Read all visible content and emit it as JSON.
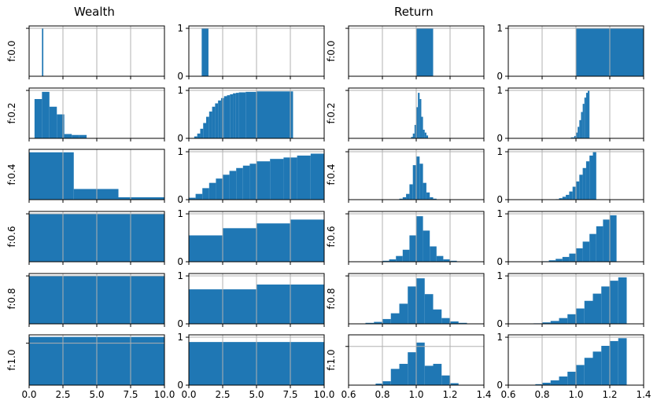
{
  "titles": {
    "wealth": "Wealth",
    "return": "Return"
  },
  "colors": {
    "bar": "#1f77b4",
    "grid": "#b0b0b0",
    "frame": "#000000"
  },
  "chart_data": {
    "type": "bar",
    "layout_note": "6x4 grid of histograms; rows indexed by f; columns: wealth density, wealth cumulative, return density, return cumulative",
    "row_labels": [
      "f:0.0",
      "f:0.2",
      "f:0.4",
      "f:0.6",
      "f:0.8",
      "f:1.0"
    ],
    "wealth_xlim": [
      0,
      10
    ],
    "wealth_xticks": [
      "0.0",
      "2.5",
      "5.0",
      "7.5",
      "10.0"
    ],
    "return_xlim": [
      0.6,
      1.4
    ],
    "return_xticks": [
      "0.6",
      "0.8",
      "1.0",
      "1.2",
      "1.4"
    ],
    "cdf_ylim": [
      0,
      1.05
    ],
    "cdf_yticks": [
      "0",
      "1"
    ],
    "grid": true,
    "rows": [
      {
        "wealth_hist": {
          "ylim": [
            0,
            1.05
          ],
          "bins": [
            [
              0.95,
              1.05,
              1.0
            ]
          ]
        },
        "wealth_cdf": [
          [
            0.95,
            1.45,
            1.0
          ]
        ],
        "return_hist": {
          "ylim": [
            0,
            1.05
          ],
          "bins": [
            [
              1.0,
              1.1,
              1.0
            ]
          ]
        },
        "return_cdf": [
          [
            1.0,
            1.4,
            1.0
          ]
        ]
      },
      {
        "wealth_hist": {
          "ylim": [
            0,
            1.05
          ],
          "bins": [
            [
              0.4,
              0.95,
              0.82
            ],
            [
              0.95,
              1.5,
              0.97
            ],
            [
              1.5,
              2.05,
              0.66
            ],
            [
              2.05,
              2.6,
              0.5
            ],
            [
              2.6,
              3.15,
              0.09
            ],
            [
              3.15,
              3.7,
              0.07
            ],
            [
              3.7,
              4.25,
              0.07
            ]
          ]
        },
        "wealth_cdf": [
          [
            0.4,
            0.62,
            0.04
          ],
          [
            0.62,
            0.84,
            0.1
          ],
          [
            0.84,
            1.06,
            0.2
          ],
          [
            1.06,
            1.28,
            0.32
          ],
          [
            1.28,
            1.5,
            0.45
          ],
          [
            1.5,
            1.72,
            0.56
          ],
          [
            1.72,
            1.94,
            0.66
          ],
          [
            1.94,
            2.16,
            0.73
          ],
          [
            2.16,
            2.38,
            0.79
          ],
          [
            2.38,
            2.6,
            0.84
          ],
          [
            2.6,
            2.82,
            0.88
          ],
          [
            2.82,
            3.04,
            0.9
          ],
          [
            3.04,
            3.26,
            0.92
          ],
          [
            3.26,
            3.48,
            0.94
          ],
          [
            3.48,
            3.7,
            0.95
          ],
          [
            3.7,
            4.2,
            0.96
          ],
          [
            4.2,
            5.0,
            0.97
          ],
          [
            5.0,
            7.7,
            0.98
          ]
        ],
        "return_hist": {
          "ylim": [
            0,
            1.05
          ],
          "bins": [
            [
              0.97,
              0.98,
              0.03
            ],
            [
              0.98,
              0.99,
              0.1
            ],
            [
              0.99,
              1.0,
              0.28
            ],
            [
              1.0,
              1.01,
              0.65
            ],
            [
              1.01,
              1.02,
              0.95
            ],
            [
              1.02,
              1.03,
              0.82
            ],
            [
              1.03,
              1.04,
              0.45
            ],
            [
              1.04,
              1.05,
              0.18
            ],
            [
              1.05,
              1.06,
              0.12
            ],
            [
              1.06,
              1.07,
              0.06
            ]
          ]
        },
        "return_cdf": [
          [
            0.97,
            0.99,
            0.02
          ],
          [
            0.99,
            1.0,
            0.05
          ],
          [
            1.0,
            1.01,
            0.12
          ],
          [
            1.01,
            1.02,
            0.24
          ],
          [
            1.02,
            1.03,
            0.38
          ],
          [
            1.03,
            1.04,
            0.55
          ],
          [
            1.04,
            1.05,
            0.72
          ],
          [
            1.05,
            1.06,
            0.85
          ],
          [
            1.06,
            1.07,
            0.95
          ],
          [
            1.07,
            1.08,
            0.99
          ]
        ]
      },
      {
        "wealth_hist": {
          "ylim": [
            0,
            0.85
          ],
          "bins": [
            [
              0.0,
              3.3,
              0.8
            ],
            [
              3.3,
              6.6,
              0.18
            ],
            [
              6.6,
              10.0,
              0.04
            ]
          ]
        },
        "wealth_cdf": [
          [
            0.0,
            0.5,
            0.04
          ],
          [
            0.5,
            1.0,
            0.12
          ],
          [
            1.0,
            1.5,
            0.24
          ],
          [
            1.5,
            2.0,
            0.35
          ],
          [
            2.0,
            2.5,
            0.44
          ],
          [
            2.5,
            3.0,
            0.52
          ],
          [
            3.0,
            3.5,
            0.6
          ],
          [
            3.5,
            4.0,
            0.66
          ],
          [
            4.0,
            4.5,
            0.71
          ],
          [
            4.5,
            5.0,
            0.75
          ],
          [
            5.0,
            6.0,
            0.8
          ],
          [
            6.0,
            7.0,
            0.85
          ],
          [
            7.0,
            8.0,
            0.88
          ],
          [
            8.0,
            9.0,
            0.92
          ],
          [
            9.0,
            10.0,
            0.96
          ]
        ],
        "return_hist": {
          "ylim": [
            0,
            1.05
          ],
          "bins": [
            [
              0.9,
              0.92,
              0.02
            ],
            [
              0.92,
              0.94,
              0.05
            ],
            [
              0.94,
              0.96,
              0.12
            ],
            [
              0.96,
              0.98,
              0.32
            ],
            [
              0.98,
              1.0,
              0.72
            ],
            [
              1.0,
              1.02,
              0.9
            ],
            [
              1.02,
              1.04,
              0.75
            ],
            [
              1.04,
              1.06,
              0.35
            ],
            [
              1.06,
              1.08,
              0.15
            ],
            [
              1.08,
              1.1,
              0.05
            ],
            [
              1.1,
              1.12,
              0.02
            ]
          ]
        },
        "return_cdf": [
          [
            0.88,
            0.9,
            0.01
          ],
          [
            0.9,
            0.92,
            0.03
          ],
          [
            0.92,
            0.94,
            0.06
          ],
          [
            0.94,
            0.96,
            0.1
          ],
          [
            0.96,
            0.98,
            0.17
          ],
          [
            0.98,
            1.0,
            0.27
          ],
          [
            1.0,
            1.02,
            0.38
          ],
          [
            1.02,
            1.04,
            0.52
          ],
          [
            1.04,
            1.06,
            0.66
          ],
          [
            1.06,
            1.08,
            0.8
          ],
          [
            1.08,
            1.1,
            0.92
          ],
          [
            1.1,
            1.12,
            0.99
          ]
        ]
      },
      {
        "wealth_hist": {
          "ylim": [
            0,
            1.05
          ],
          "bins": [
            [
              0.0,
              10.0,
              1.0
            ]
          ]
        },
        "wealth_cdf": [
          [
            0.0,
            2.5,
            0.55
          ],
          [
            2.5,
            5.0,
            0.7
          ],
          [
            5.0,
            7.5,
            0.8
          ],
          [
            7.5,
            10.0,
            0.88
          ]
        ],
        "return_hist": {
          "ylim": [
            0,
            1.05
          ],
          "bins": [
            [
              0.8,
              0.84,
              0.02
            ],
            [
              0.84,
              0.88,
              0.05
            ],
            [
              0.88,
              0.92,
              0.12
            ],
            [
              0.92,
              0.96,
              0.25
            ],
            [
              0.96,
              1.0,
              0.55
            ],
            [
              1.0,
              1.04,
              0.95
            ],
            [
              1.04,
              1.08,
              0.65
            ],
            [
              1.08,
              1.12,
              0.32
            ],
            [
              1.12,
              1.16,
              0.12
            ],
            [
              1.16,
              1.2,
              0.05
            ],
            [
              1.2,
              1.24,
              0.02
            ]
          ]
        },
        "return_cdf": [
          [
            0.8,
            0.84,
            0.01
          ],
          [
            0.84,
            0.88,
            0.03
          ],
          [
            0.88,
            0.92,
            0.06
          ],
          [
            0.92,
            0.96,
            0.1
          ],
          [
            0.96,
            1.0,
            0.17
          ],
          [
            1.0,
            1.04,
            0.28
          ],
          [
            1.04,
            1.08,
            0.42
          ],
          [
            1.08,
            1.12,
            0.58
          ],
          [
            1.12,
            1.16,
            0.74
          ],
          [
            1.16,
            1.2,
            0.88
          ],
          [
            1.2,
            1.24,
            0.97
          ]
        ]
      },
      {
        "wealth_hist": {
          "ylim": [
            0,
            1.05
          ],
          "bins": [
            [
              0.0,
              10.0,
              1.0
            ]
          ]
        },
        "wealth_cdf": [
          [
            0.0,
            5.0,
            0.72
          ],
          [
            5.0,
            10.0,
            0.82
          ]
        ],
        "return_hist": {
          "ylim": [
            0,
            1.05
          ],
          "bins": [
            [
              0.7,
              0.75,
              0.02
            ],
            [
              0.75,
              0.8,
              0.04
            ],
            [
              0.8,
              0.85,
              0.1
            ],
            [
              0.85,
              0.9,
              0.22
            ],
            [
              0.9,
              0.95,
              0.42
            ],
            [
              0.95,
              1.0,
              0.78
            ],
            [
              1.0,
              1.05,
              0.95
            ],
            [
              1.05,
              1.1,
              0.62
            ],
            [
              1.1,
              1.15,
              0.3
            ],
            [
              1.15,
              1.2,
              0.12
            ],
            [
              1.2,
              1.25,
              0.05
            ],
            [
              1.25,
              1.3,
              0.02
            ]
          ]
        },
        "return_cdf": [
          [
            0.75,
            0.8,
            0.01
          ],
          [
            0.8,
            0.85,
            0.03
          ],
          [
            0.85,
            0.9,
            0.06
          ],
          [
            0.9,
            0.95,
            0.12
          ],
          [
            0.95,
            1.0,
            0.2
          ],
          [
            1.0,
            1.05,
            0.32
          ],
          [
            1.05,
            1.1,
            0.48
          ],
          [
            1.1,
            1.15,
            0.63
          ],
          [
            1.15,
            1.2,
            0.78
          ],
          [
            1.2,
            1.25,
            0.9
          ],
          [
            1.25,
            1.3,
            0.97
          ]
        ]
      },
      {
        "wealth_hist": {
          "ylim": [
            0,
            1.2
          ],
          "bins": [
            [
              0.0,
              10.0,
              1.15
            ]
          ]
        },
        "wealth_cdf": [
          [
            0.0,
            10.0,
            0.9
          ]
        ],
        "return_hist": {
          "ylim": [
            0,
            1.3
          ],
          "bins": [
            [
              0.76,
              0.8,
              0.04
            ],
            [
              0.8,
              0.85,
              0.1
            ],
            [
              0.85,
              0.9,
              0.42
            ],
            [
              0.9,
              0.95,
              0.55
            ],
            [
              0.95,
              1.0,
              0.85
            ],
            [
              1.0,
              1.05,
              1.1
            ],
            [
              1.05,
              1.1,
              0.5
            ],
            [
              1.1,
              1.15,
              0.55
            ],
            [
              1.15,
              1.2,
              0.25
            ],
            [
              1.2,
              1.25,
              0.05
            ]
          ]
        },
        "return_cdf": [
          [
            0.76,
            0.8,
            0.02
          ],
          [
            0.8,
            0.85,
            0.05
          ],
          [
            0.85,
            0.9,
            0.1
          ],
          [
            0.9,
            0.95,
            0.18
          ],
          [
            0.95,
            1.0,
            0.28
          ],
          [
            1.0,
            1.05,
            0.42
          ],
          [
            1.05,
            1.1,
            0.57
          ],
          [
            1.1,
            1.15,
            0.7
          ],
          [
            1.15,
            1.2,
            0.82
          ],
          [
            1.2,
            1.25,
            0.92
          ],
          [
            1.25,
            1.3,
            0.98
          ]
        ]
      }
    ]
  }
}
